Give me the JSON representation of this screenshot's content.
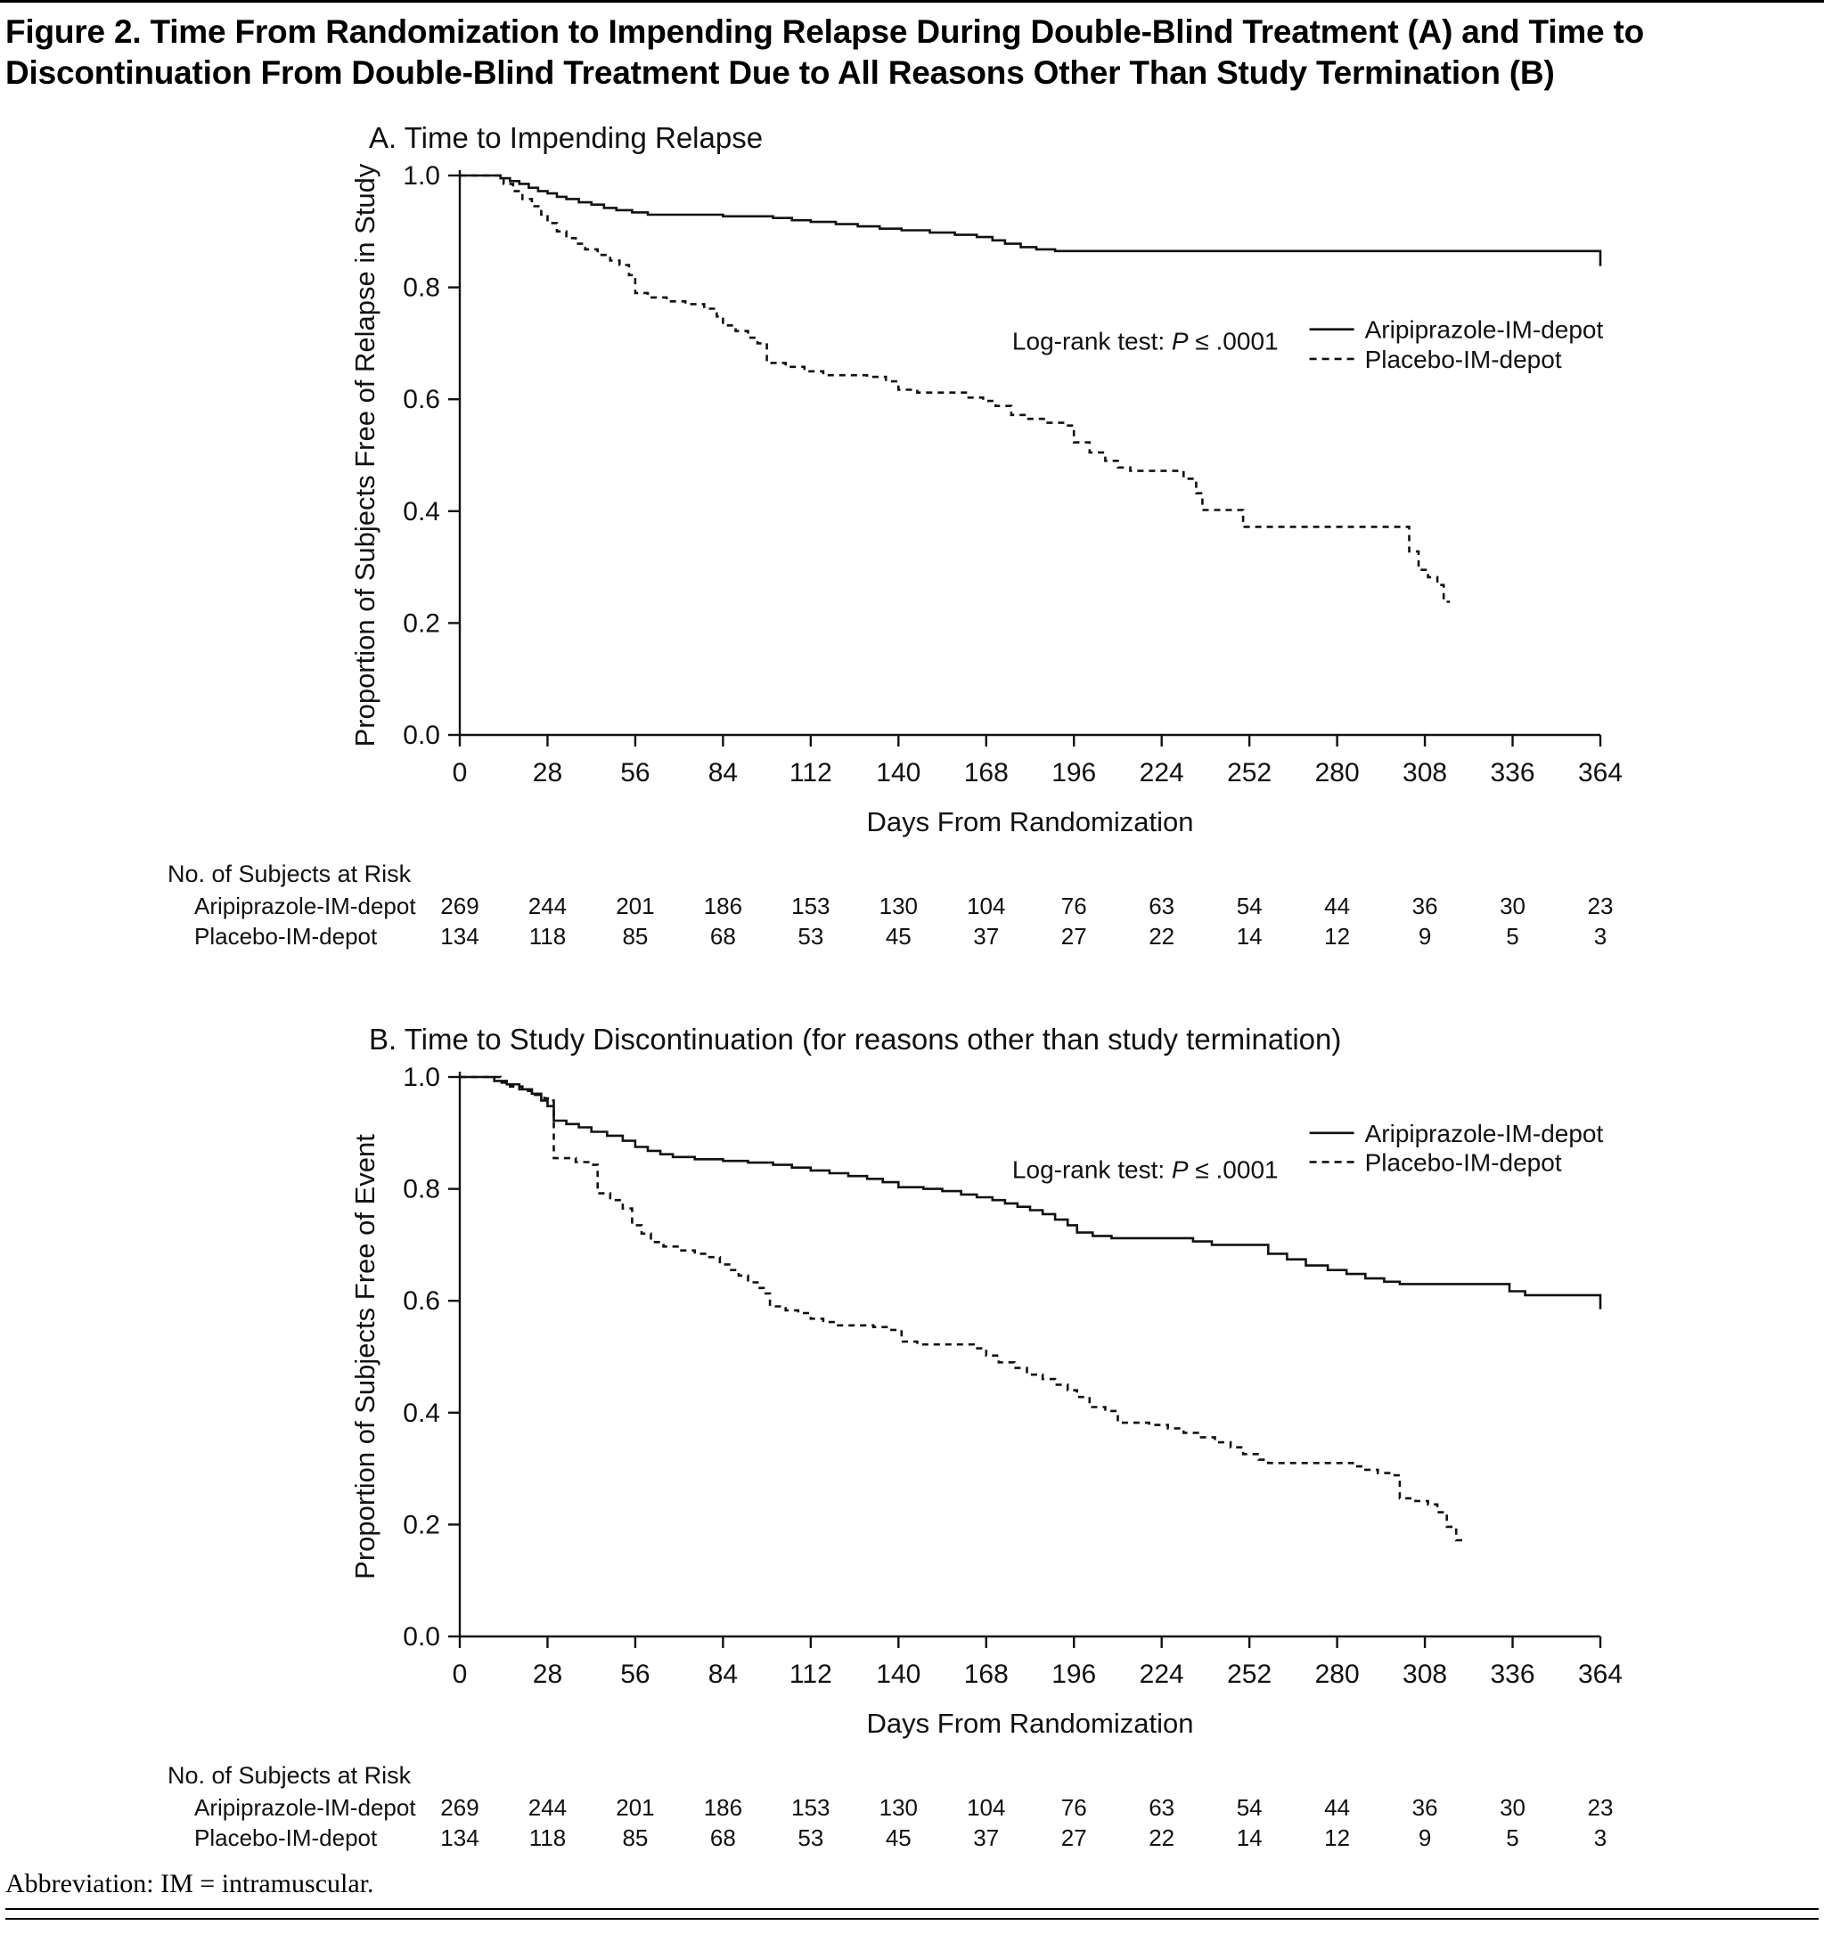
{
  "page": {
    "title": "Figure 2. Time From Randomization to Impending Relapse During Double-Blind Treatment (A) and Time to Discontinuation From Double-Blind Treatment Due to All Reasons Other Than Study Termination (B)",
    "abbreviation": "Abbreviation: IM = intramuscular."
  },
  "chart_data": [
    {
      "type": "line",
      "kind": "kaplan-meier",
      "panel_title": "A. Time to Impending Relapse",
      "xlabel": "Days From Randomization",
      "ylabel": "Proportion of Subjects Free of Relapse in Study",
      "xlim": [
        0,
        364
      ],
      "ylim": [
        0,
        1
      ],
      "xticks": [
        0,
        28,
        56,
        84,
        112,
        140,
        168,
        196,
        224,
        252,
        280,
        308,
        336,
        364
      ],
      "yticks": [
        "0.0",
        "0.2",
        "0.4",
        "0.6",
        "0.8",
        "1.0"
      ],
      "annotation": {
        "prefix": "Log-rank test: ",
        "p": "P",
        "suffix": " ≤ .0001",
        "fy": 0.705
      },
      "legend": {
        "fx": 0.745,
        "entries": [
          {
            "label": "Aripiprazole-IM-depot",
            "dash": false,
            "fy": 0.725
          },
          {
            "label": "Placebo-IM-depot",
            "dash": true,
            "fy": 0.672
          }
        ]
      },
      "series": [
        {
          "name": "Aripiprazole-IM-depot",
          "dash": false,
          "points": [
            [
              0,
              1
            ],
            [
              10,
              1
            ],
            [
              13,
              0.995
            ],
            [
              16,
              0.99
            ],
            [
              19,
              0.985
            ],
            [
              22,
              0.978
            ],
            [
              25,
              0.972
            ],
            [
              28,
              0.968
            ],
            [
              31,
              0.962
            ],
            [
              34,
              0.958
            ],
            [
              38,
              0.952
            ],
            [
              42,
              0.948
            ],
            [
              46,
              0.942
            ],
            [
              50,
              0.938
            ],
            [
              55,
              0.934
            ],
            [
              60,
              0.93
            ],
            [
              78,
              0.93
            ],
            [
              84,
              0.927
            ],
            [
              100,
              0.924
            ],
            [
              106,
              0.92
            ],
            [
              112,
              0.917
            ],
            [
              120,
              0.913
            ],
            [
              127,
              0.909
            ],
            [
              134,
              0.905
            ],
            [
              141,
              0.902
            ],
            [
              150,
              0.898
            ],
            [
              158,
              0.894
            ],
            [
              165,
              0.89
            ],
            [
              170,
              0.884
            ],
            [
              174,
              0.878
            ],
            [
              179,
              0.872
            ],
            [
              184,
              0.868
            ],
            [
              190,
              0.865
            ],
            [
              364,
              0.865
            ],
            [
              364,
              0.838
            ]
          ]
        },
        {
          "name": "Placebo-IM-depot",
          "dash": true,
          "points": [
            [
              0,
              1
            ],
            [
              11,
              1
            ],
            [
              14,
              0.985
            ],
            [
              17,
              0.972
            ],
            [
              20,
              0.958
            ],
            [
              23,
              0.945
            ],
            [
              26,
              0.93
            ],
            [
              28,
              0.915
            ],
            [
              31,
              0.9
            ],
            [
              34,
              0.888
            ],
            [
              37,
              0.878
            ],
            [
              40,
              0.868
            ],
            [
              44,
              0.858
            ],
            [
              48,
              0.848
            ],
            [
              51,
              0.84
            ],
            [
              54,
              0.822
            ],
            [
              56,
              0.79
            ],
            [
              60,
              0.782
            ],
            [
              66,
              0.775
            ],
            [
              72,
              0.77
            ],
            [
              78,
              0.762
            ],
            [
              82,
              0.748
            ],
            [
              84,
              0.732
            ],
            [
              88,
              0.722
            ],
            [
              92,
              0.71
            ],
            [
              95,
              0.7
            ],
            [
              98,
              0.665
            ],
            [
              104,
              0.658
            ],
            [
              110,
              0.65
            ],
            [
              116,
              0.643
            ],
            [
              130,
              0.64
            ],
            [
              136,
              0.632
            ],
            [
              140,
              0.617
            ],
            [
              146,
              0.612
            ],
            [
              158,
              0.612
            ],
            [
              162,
              0.603
            ],
            [
              167,
              0.597
            ],
            [
              171,
              0.588
            ],
            [
              176,
              0.572
            ],
            [
              181,
              0.565
            ],
            [
              187,
              0.558
            ],
            [
              193,
              0.553
            ],
            [
              196,
              0.523
            ],
            [
              201,
              0.505
            ],
            [
              206,
              0.49
            ],
            [
              210,
              0.478
            ],
            [
              214,
              0.472
            ],
            [
              227,
              0.472
            ],
            [
              231,
              0.458
            ],
            [
              235,
              0.432
            ],
            [
              237,
              0.402
            ],
            [
              246,
              0.402
            ],
            [
              250,
              0.372
            ],
            [
              298,
              0.372
            ],
            [
              303,
              0.328
            ],
            [
              306,
              0.295
            ],
            [
              309,
              0.282
            ],
            [
              312,
              0.268
            ],
            [
              314,
              0.238
            ],
            [
              316,
              0.238
            ]
          ]
        }
      ],
      "risk_table": {
        "header": "No. of Subjects at Risk",
        "rows": [
          {
            "label": "Aripiprazole-IM-depot",
            "values": [
              269,
              244,
              201,
              186,
              153,
              130,
              104,
              76,
              63,
              54,
              44,
              36,
              30,
              23
            ]
          },
          {
            "label": "Placebo-IM-depot",
            "values": [
              134,
              118,
              85,
              68,
              53,
              45,
              37,
              27,
              22,
              14,
              12,
              9,
              5,
              3
            ]
          }
        ]
      }
    },
    {
      "type": "line",
      "kind": "kaplan-meier",
      "panel_title": "B. Time to Study Discontinuation (for reasons other than study termination)",
      "xlabel": "Days From Randomization",
      "ylabel": "Proportion of Subjects Free of Event",
      "xlim": [
        0,
        364
      ],
      "ylim": [
        0,
        1
      ],
      "xticks": [
        0,
        28,
        56,
        84,
        112,
        140,
        168,
        196,
        224,
        252,
        280,
        308,
        336,
        364
      ],
      "yticks": [
        "0.0",
        "0.2",
        "0.4",
        "0.6",
        "0.8",
        "1.0"
      ],
      "annotation": {
        "prefix": "Log-rank test: ",
        "p": "P",
        "suffix": " ≤ .0001",
        "fy": 0.835
      },
      "legend": {
        "fx": 0.745,
        "entries": [
          {
            "label": "Aripiprazole-IM-depot",
            "dash": false,
            "fy": 0.9
          },
          {
            "label": "Placebo-IM-depot",
            "dash": true,
            "fy": 0.848
          }
        ]
      },
      "series": [
        {
          "name": "Aripiprazole-IM-depot",
          "dash": false,
          "points": [
            [
              0,
              1
            ],
            [
              8,
              1
            ],
            [
              11,
              0.993
            ],
            [
              15,
              0.987
            ],
            [
              19,
              0.978
            ],
            [
              23,
              0.97
            ],
            [
              26,
              0.958
            ],
            [
              28,
              0.948
            ],
            [
              30,
              0.922
            ],
            [
              34,
              0.916
            ],
            [
              38,
              0.91
            ],
            [
              42,
              0.902
            ],
            [
              47,
              0.895
            ],
            [
              52,
              0.886
            ],
            [
              56,
              0.875
            ],
            [
              60,
              0.868
            ],
            [
              64,
              0.862
            ],
            [
              68,
              0.857
            ],
            [
              75,
              0.853
            ],
            [
              84,
              0.85
            ],
            [
              92,
              0.847
            ],
            [
              100,
              0.843
            ],
            [
              106,
              0.838
            ],
            [
              112,
              0.833
            ],
            [
              118,
              0.828
            ],
            [
              124,
              0.823
            ],
            [
              130,
              0.818
            ],
            [
              135,
              0.812
            ],
            [
              140,
              0.803
            ],
            [
              148,
              0.8
            ],
            [
              154,
              0.796
            ],
            [
              160,
              0.79
            ],
            [
              165,
              0.785
            ],
            [
              170,
              0.78
            ],
            [
              174,
              0.774
            ],
            [
              178,
              0.768
            ],
            [
              182,
              0.762
            ],
            [
              186,
              0.755
            ],
            [
              190,
              0.745
            ],
            [
              194,
              0.735
            ],
            [
              197,
              0.722
            ],
            [
              202,
              0.716
            ],
            [
              208,
              0.712
            ],
            [
              228,
              0.712
            ],
            [
              234,
              0.706
            ],
            [
              240,
              0.7
            ],
            [
              253,
              0.7
            ],
            [
              258,
              0.684
            ],
            [
              264,
              0.674
            ],
            [
              270,
              0.663
            ],
            [
              277,
              0.655
            ],
            [
              283,
              0.648
            ],
            [
              289,
              0.64
            ],
            [
              295,
              0.634
            ],
            [
              300,
              0.63
            ],
            [
              330,
              0.63
            ],
            [
              335,
              0.617
            ],
            [
              340,
              0.61
            ],
            [
              361,
              0.61
            ],
            [
              364,
              0.585
            ]
          ]
        },
        {
          "name": "Placebo-IM-depot",
          "dash": true,
          "points": [
            [
              0,
              1
            ],
            [
              10,
              1
            ],
            [
              13,
              0.99
            ],
            [
              16,
              0.983
            ],
            [
              20,
              0.975
            ],
            [
              24,
              0.968
            ],
            [
              27,
              0.962
            ],
            [
              29,
              0.958
            ],
            [
              30,
              0.855
            ],
            [
              37,
              0.848
            ],
            [
              41,
              0.843
            ],
            [
              44,
              0.792
            ],
            [
              48,
              0.78
            ],
            [
              52,
              0.765
            ],
            [
              55,
              0.735
            ],
            [
              58,
              0.72
            ],
            [
              61,
              0.705
            ],
            [
              65,
              0.697
            ],
            [
              70,
              0.69
            ],
            [
              75,
              0.684
            ],
            [
              79,
              0.678
            ],
            [
              83,
              0.665
            ],
            [
              86,
              0.655
            ],
            [
              89,
              0.645
            ],
            [
              92,
              0.633
            ],
            [
              95,
              0.623
            ],
            [
              97,
              0.613
            ],
            [
              99,
              0.59
            ],
            [
              104,
              0.583
            ],
            [
              108,
              0.578
            ],
            [
              112,
              0.568
            ],
            [
              116,
              0.562
            ],
            [
              120,
              0.556
            ],
            [
              132,
              0.553
            ],
            [
              137,
              0.548
            ],
            [
              141,
              0.527
            ],
            [
              146,
              0.522
            ],
            [
              160,
              0.522
            ],
            [
              164,
              0.515
            ],
            [
              168,
              0.502
            ],
            [
              172,
              0.49
            ],
            [
              177,
              0.48
            ],
            [
              181,
              0.468
            ],
            [
              186,
              0.46
            ],
            [
              190,
              0.45
            ],
            [
              194,
              0.44
            ],
            [
              197,
              0.428
            ],
            [
              201,
              0.41
            ],
            [
              206,
              0.403
            ],
            [
              210,
              0.382
            ],
            [
              220,
              0.378
            ],
            [
              226,
              0.372
            ],
            [
              231,
              0.364
            ],
            [
              236,
              0.356
            ],
            [
              241,
              0.347
            ],
            [
              246,
              0.338
            ],
            [
              250,
              0.326
            ],
            [
              255,
              0.316
            ],
            [
              258,
              0.31
            ],
            [
              281,
              0.31
            ],
            [
              285,
              0.304
            ],
            [
              289,
              0.298
            ],
            [
              293,
              0.292
            ],
            [
              297,
              0.288
            ],
            [
              300,
              0.247
            ],
            [
              305,
              0.242
            ],
            [
              309,
              0.236
            ],
            [
              312,
              0.222
            ],
            [
              315,
              0.196
            ],
            [
              318,
              0.172
            ],
            [
              321,
              0.172
            ]
          ]
        }
      ],
      "risk_table": {
        "header": "No. of Subjects at Risk",
        "rows": [
          {
            "label": "Aripiprazole-IM-depot",
            "values": [
              269,
              244,
              201,
              186,
              153,
              130,
              104,
              76,
              63,
              54,
              44,
              36,
              30,
              23
            ]
          },
          {
            "label": "Placebo-IM-depot",
            "values": [
              134,
              118,
              85,
              68,
              53,
              45,
              37,
              27,
              22,
              14,
              12,
              9,
              5,
              3
            ]
          }
        ]
      }
    }
  ]
}
